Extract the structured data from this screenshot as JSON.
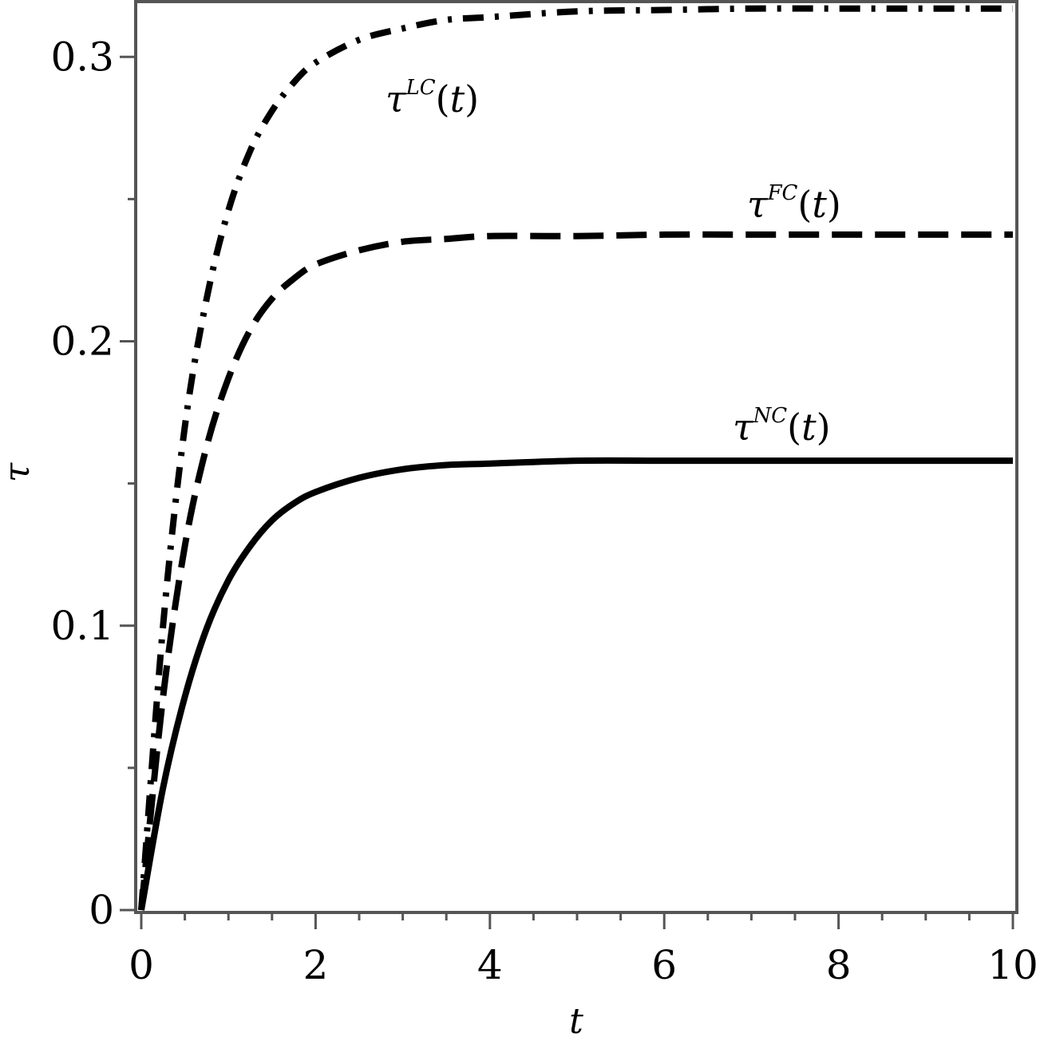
{
  "chart_data": {
    "type": "line",
    "xlabel": "t",
    "ylabel": "τ",
    "xlim": [
      0,
      10
    ],
    "ylim": [
      0,
      0.32
    ],
    "x_ticks": [
      "0",
      "2",
      "4",
      "6",
      "8",
      "10"
    ],
    "y_ticks": [
      "0",
      "0.1",
      "0.2",
      "0.3"
    ],
    "grid": false,
    "x": [
      0,
      0.25,
      0.5,
      0.75,
      1,
      1.25,
      1.5,
      1.75,
      2,
      2.5,
      3,
      3.5,
      4,
      5,
      6,
      7,
      8,
      9,
      10
    ],
    "series": [
      {
        "label_symbol": "τ",
        "label_sup": "LC",
        "label_arg": "t",
        "style": "dashdot",
        "values": [
          0,
          0.1,
          0.17,
          0.215,
          0.246,
          0.267,
          0.281,
          0.291,
          0.298,
          0.306,
          0.31,
          0.313,
          0.314,
          0.316,
          0.3165,
          0.317,
          0.317,
          0.317,
          0.317
        ]
      },
      {
        "label_symbol": "τ",
        "label_sup": "FC",
        "label_arg": "t",
        "style": "dashed",
        "values": [
          0,
          0.075,
          0.128,
          0.163,
          0.187,
          0.204,
          0.215,
          0.222,
          0.227,
          0.232,
          0.235,
          0.236,
          0.237,
          0.237,
          0.2375,
          0.2375,
          0.2375,
          0.2375,
          0.2375
        ]
      },
      {
        "label_symbol": "τ",
        "label_sup": "NC",
        "label_arg": "t",
        "style": "solid",
        "values": [
          0,
          0.043,
          0.075,
          0.099,
          0.116,
          0.128,
          0.137,
          0.143,
          0.147,
          0.152,
          0.155,
          0.1565,
          0.157,
          0.158,
          0.158,
          0.158,
          0.158,
          0.158,
          0.158
        ]
      }
    ]
  }
}
